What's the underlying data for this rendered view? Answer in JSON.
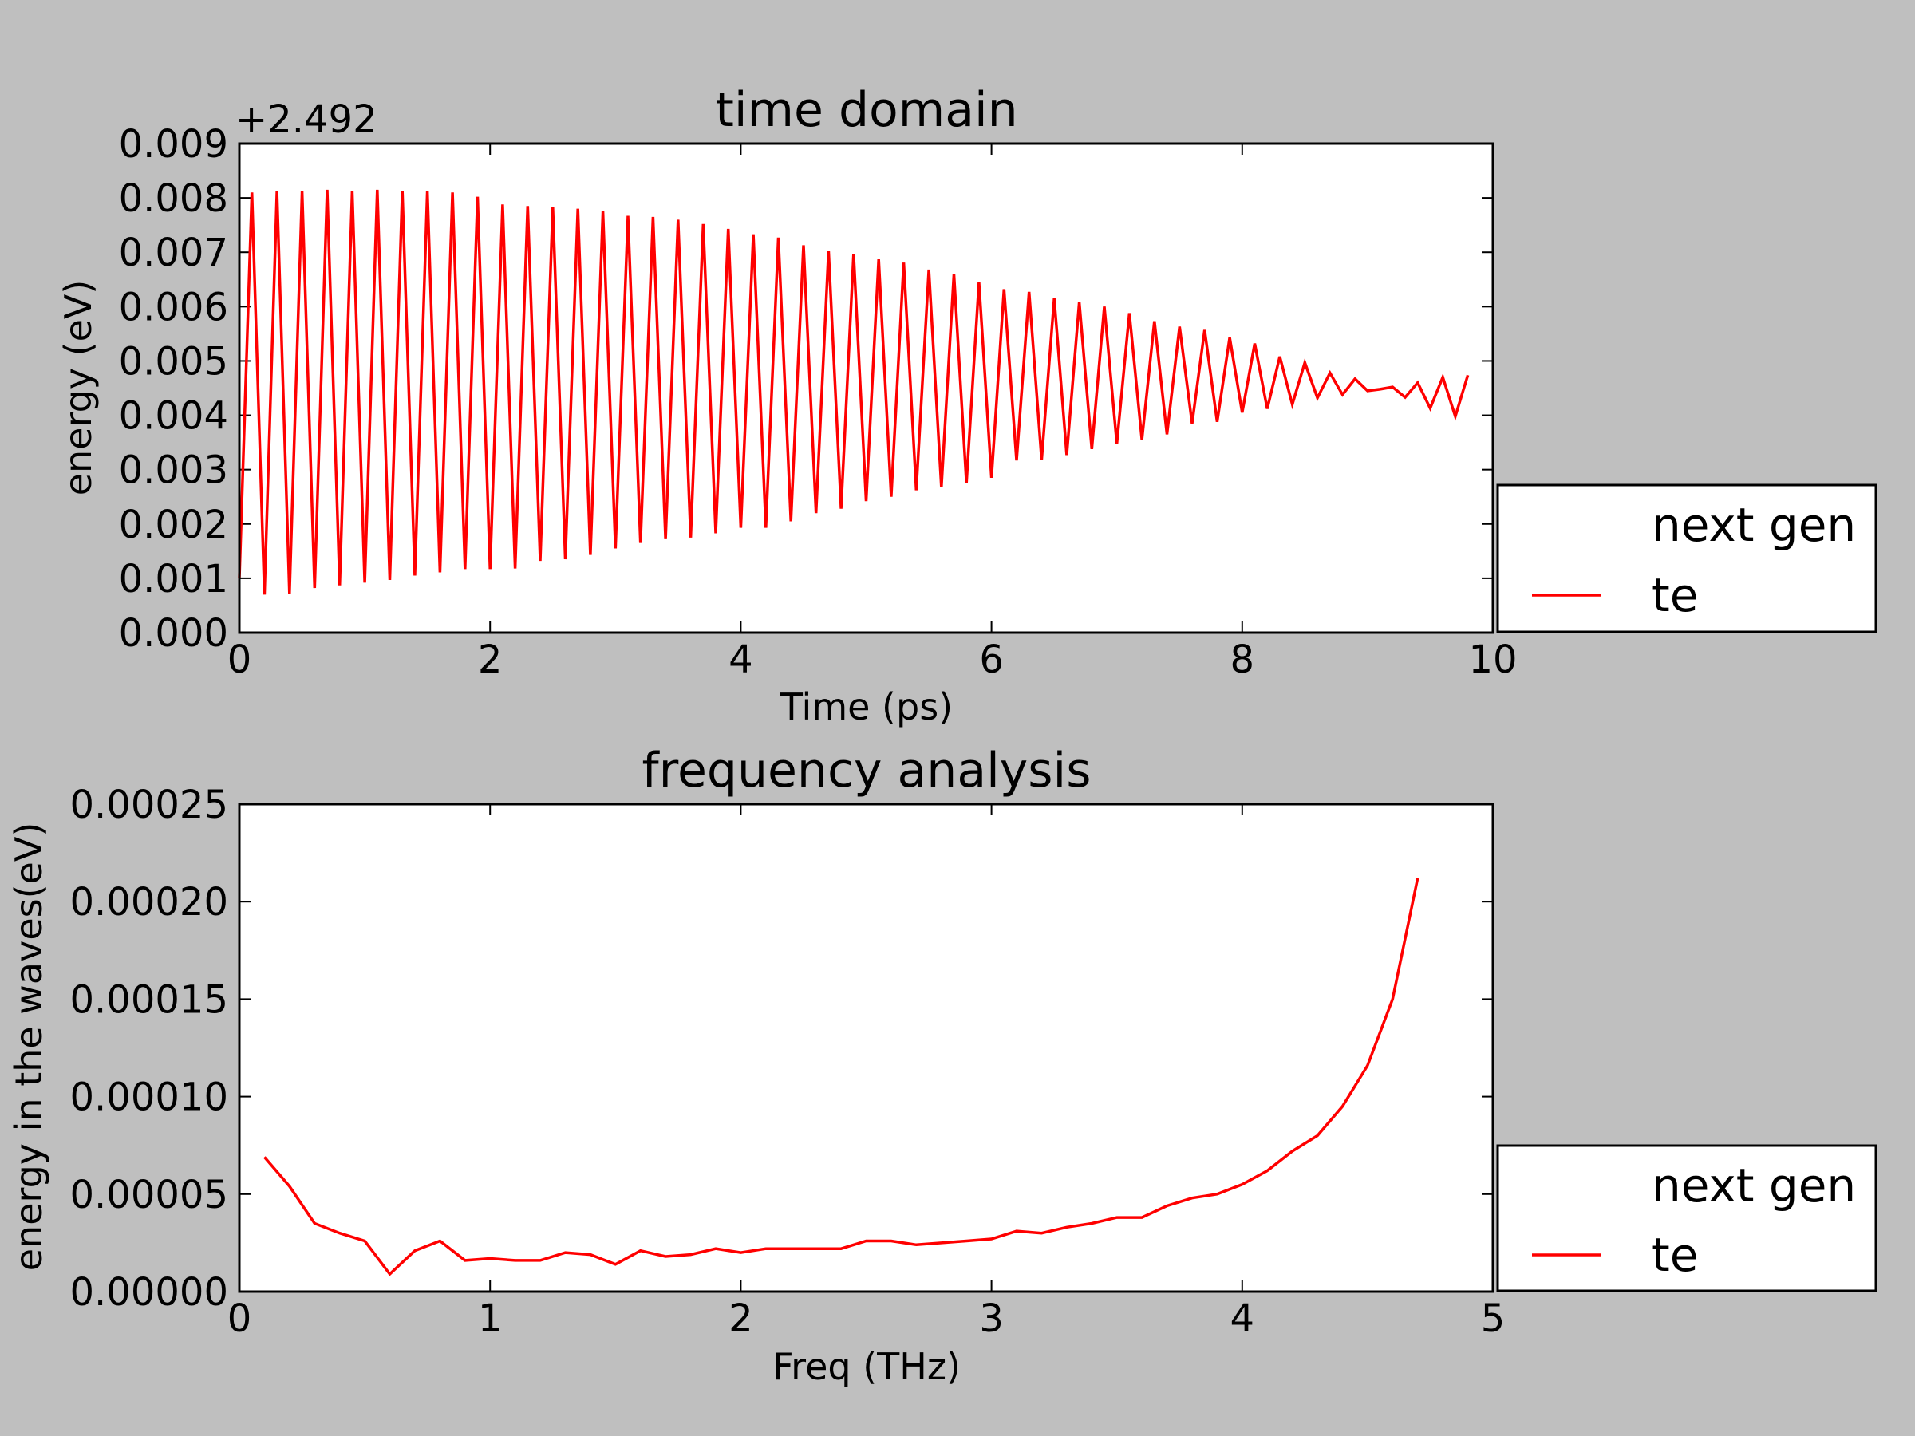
{
  "colors": {
    "background": "#bfbfbf",
    "axes_bg": "#ffffff",
    "series": "#ff0000"
  },
  "chart_data": [
    {
      "type": "line",
      "title": "time domain",
      "xlabel": "Time (ps)",
      "ylabel": "energy (eV)",
      "y_offset_text": "+2.492",
      "xlim": [
        0,
        10
      ],
      "ylim": [
        0,
        0.009
      ],
      "x_ticks": [
        "0",
        "2",
        "4",
        "6",
        "8",
        "10"
      ],
      "y_ticks": [
        "0.000",
        "0.001",
        "0.002",
        "0.003",
        "0.004",
        "0.005",
        "0.006",
        "0.007",
        "0.008",
        "0.009"
      ],
      "grid": false,
      "legend": {
        "placement": "outside-right-bottom",
        "entries": [
          "next gen",
          "te"
        ]
      },
      "series": [
        {
          "name": "te",
          "color": "#ff0000",
          "x": [
            0,
            0.1,
            0.2,
            0.3,
            0.4,
            0.5,
            0.6,
            0.7,
            0.8,
            0.9,
            1.0,
            1.1,
            1.2,
            1.3,
            1.4,
            1.5,
            1.6,
            1.7,
            1.8,
            1.9,
            2.0,
            2.1,
            2.2,
            2.3,
            2.4,
            2.5,
            2.6,
            2.7,
            2.8,
            2.9,
            3.0,
            3.1,
            3.2,
            3.3,
            3.4,
            3.5,
            3.6,
            3.7,
            3.8,
            3.9,
            4.0,
            4.1,
            4.2,
            4.3,
            4.4,
            4.5,
            4.6,
            4.7,
            4.8,
            4.9,
            5.0,
            5.1,
            5.2,
            5.3,
            5.4,
            5.5,
            5.6,
            5.7,
            5.8,
            5.9,
            6.0,
            6.1,
            6.2,
            6.3,
            6.4,
            6.5,
            6.6,
            6.7,
            6.8,
            6.9,
            7.0,
            7.1,
            7.2,
            7.3,
            7.4,
            7.5,
            7.6,
            7.7,
            7.8,
            7.9,
            8.0,
            8.1,
            8.2,
            8.3,
            8.4,
            8.5,
            8.6,
            8.7,
            8.8,
            8.9,
            9.0,
            9.1,
            9.2,
            9.3,
            9.4,
            9.5,
            9.6,
            9.7,
            9.8
          ],
          "y": [
            0.001,
            0.0081,
            0.0007,
            0.00812,
            0.00072,
            0.00812,
            0.00082,
            0.00815,
            0.00087,
            0.00813,
            0.00092,
            0.00815,
            0.00097,
            0.00813,
            0.00105,
            0.00813,
            0.00111,
            0.0081,
            0.00117,
            0.00802,
            0.00117,
            0.00788,
            0.00118,
            0.00785,
            0.00132,
            0.00783,
            0.00135,
            0.0078,
            0.00143,
            0.00775,
            0.00155,
            0.00767,
            0.00165,
            0.00765,
            0.00172,
            0.0076,
            0.00175,
            0.00752,
            0.00183,
            0.00743,
            0.00193,
            0.00733,
            0.00193,
            0.00727,
            0.00205,
            0.00713,
            0.0022,
            0.00703,
            0.00228,
            0.00697,
            0.00242,
            0.00687,
            0.0025,
            0.00681,
            0.00262,
            0.00668,
            0.00268,
            0.0066,
            0.00275,
            0.00645,
            0.00285,
            0.00632,
            0.00317,
            0.00627,
            0.00318,
            0.00615,
            0.00327,
            0.00608,
            0.00338,
            0.006,
            0.00348,
            0.00588,
            0.00355,
            0.00573,
            0.00365,
            0.00563,
            0.00385,
            0.00557,
            0.00388,
            0.00543,
            0.00405,
            0.00532,
            0.00412,
            0.00508,
            0.0042,
            0.00497,
            0.00432,
            0.00478,
            0.00438,
            0.00467,
            0.00445,
            0.00448,
            0.00452,
            0.00433,
            0.0046,
            0.00413,
            0.0047,
            0.00398,
            0.00474
          ]
        }
      ]
    },
    {
      "type": "line",
      "title": "frequency analysis",
      "xlabel": "Freq (THz)",
      "ylabel": "energy in the waves(eV)",
      "xlim": [
        0,
        5
      ],
      "ylim": [
        0,
        0.00025
      ],
      "x_ticks": [
        "0",
        "1",
        "2",
        "3",
        "4",
        "5"
      ],
      "y_ticks": [
        "0.00000",
        "0.00005",
        "0.00010",
        "0.00015",
        "0.00020",
        "0.00025"
      ],
      "grid": false,
      "legend": {
        "placement": "outside-right-bottom",
        "entries": [
          "next gen",
          "te"
        ]
      },
      "series": [
        {
          "name": "te",
          "color": "#ff0000",
          "x": [
            0.1,
            0.2,
            0.3,
            0.4,
            0.5,
            0.6,
            0.7,
            0.8,
            0.9,
            1.0,
            1.1,
            1.2,
            1.3,
            1.4,
            1.5,
            1.6,
            1.7,
            1.8,
            1.9,
            2.0,
            2.1,
            2.2,
            2.3,
            2.4,
            2.5,
            2.6,
            2.7,
            2.8,
            2.9,
            3.0,
            3.1,
            3.2,
            3.3,
            3.4,
            3.5,
            3.6,
            3.7,
            3.8,
            3.9,
            4.0,
            4.1,
            4.2,
            4.3,
            4.4,
            4.5,
            4.6,
            4.7
          ],
          "y": [
            6.9e-05,
            5.4e-05,
            3.5e-05,
            3e-05,
            2.6e-05,
            9e-06,
            2.1e-05,
            2.6e-05,
            1.6e-05,
            1.7e-05,
            1.6e-05,
            1.6e-05,
            2e-05,
            1.9e-05,
            1.4e-05,
            2.1e-05,
            1.8e-05,
            1.9e-05,
            2.2e-05,
            2e-05,
            2.2e-05,
            2.2e-05,
            2.2e-05,
            2.2e-05,
            2.6e-05,
            2.6e-05,
            2.4e-05,
            2.5e-05,
            2.6e-05,
            2.7e-05,
            3.1e-05,
            3e-05,
            3.3e-05,
            3.5e-05,
            3.8e-05,
            3.8e-05,
            4.4e-05,
            4.8e-05,
            5e-05,
            5.5e-05,
            6.2e-05,
            7.2e-05,
            8e-05,
            9.5e-05,
            0.000116,
            0.00015,
            0.000212
          ]
        }
      ]
    }
  ]
}
